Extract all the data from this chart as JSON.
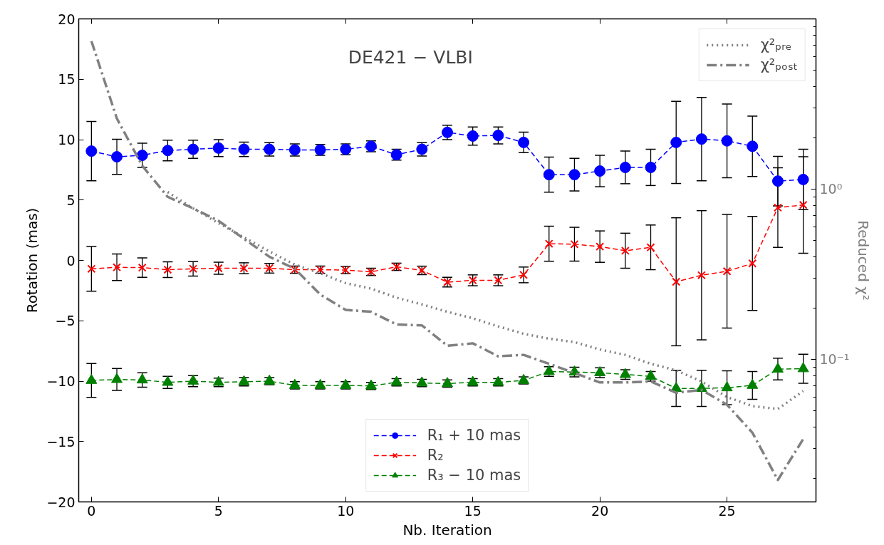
{
  "chart_data": {
    "type": "line",
    "title": "DE421 − VLBI",
    "xlabel": "Nb. Iteration",
    "ylabel": "Rotation (mas)",
    "y2label": "Reduced χ²",
    "x": [
      0,
      1,
      2,
      3,
      4,
      5,
      6,
      7,
      8,
      9,
      10,
      11,
      12,
      13,
      14,
      15,
      16,
      17,
      18,
      19,
      20,
      21,
      22,
      23,
      24,
      25,
      26,
      27,
      28
    ],
    "xlim": [
      -0.5,
      28.5
    ],
    "xticks": [
      0,
      5,
      10,
      15,
      20,
      25
    ],
    "ylim": [
      -20,
      20
    ],
    "yticks": [
      {
        "value": -20,
        "label": "−20"
      },
      {
        "value": -15,
        "label": "−15"
      },
      {
        "value": -10,
        "label": "−10"
      },
      {
        "value": -5,
        "label": "−5"
      },
      0,
      5,
      10,
      15,
      20
    ],
    "y2lim": [
      0.0145,
      10
    ],
    "log": "y2",
    "y2ticks": [
      {
        "value": 0.02,
        "label": null
      },
      {
        "value": 0.03,
        "label": null
      },
      {
        "value": 0.04,
        "label": null
      },
      {
        "value": 0.05,
        "label": null
      },
      {
        "value": 0.06,
        "label": null
      },
      {
        "value": 0.07,
        "label": null
      },
      {
        "value": 0.08,
        "label": null
      },
      {
        "value": 0.09,
        "label": null
      },
      {
        "value": 0.1,
        "label": "10⁻¹"
      },
      {
        "value": 0.2,
        "label": null
      },
      {
        "value": 0.3,
        "label": null
      },
      {
        "value": 0.4,
        "label": null
      },
      {
        "value": 0.5,
        "label": null
      },
      {
        "value": 0.6,
        "label": null
      },
      {
        "value": 0.7,
        "label": null
      },
      {
        "value": 0.8,
        "label": null
      },
      {
        "value": 0.9,
        "label": null
      },
      {
        "value": 1,
        "label": "10⁰"
      },
      {
        "value": 2,
        "label": null
      },
      {
        "value": 3,
        "label": null
      },
      {
        "value": 4,
        "label": null
      },
      {
        "value": 5,
        "label": null
      },
      {
        "value": 6,
        "label": null
      },
      {
        "value": 7,
        "label": null
      },
      {
        "value": 8,
        "label": null
      },
      {
        "value": 9,
        "label": null
      }
    ],
    "grid": false,
    "legend": [
      "bottom",
      "top right"
    ],
    "series": [
      {
        "name": "R₁ + 10 mas",
        "color": "#0000ff",
        "marker": "circle",
        "line_style": "dashed",
        "values": [
          9.05,
          8.58,
          8.7,
          9.1,
          9.2,
          9.3,
          9.2,
          9.2,
          9.15,
          9.15,
          9.2,
          9.45,
          8.75,
          9.2,
          10.6,
          10.3,
          10.35,
          9.77,
          7.1,
          7.1,
          7.4,
          7.7,
          7.7,
          9.77,
          10.05,
          9.9,
          9.45,
          6.57,
          6.7
        ],
        "errors": [
          2.45,
          1.45,
          1.0,
          0.85,
          0.75,
          0.7,
          0.6,
          0.55,
          0.5,
          0.45,
          0.45,
          0.45,
          0.45,
          0.55,
          0.6,
          0.75,
          0.7,
          0.85,
          1.45,
          1.35,
          1.3,
          1.35,
          1.5,
          3.4,
          3.45,
          3.05,
          2.5,
          2.05,
          2.5
        ]
      },
      {
        "name": "R₂",
        "color": "#ff0000",
        "marker": "cross",
        "line_style": "dashed",
        "values": [
          -0.7,
          -0.57,
          -0.6,
          -0.77,
          -0.7,
          -0.65,
          -0.65,
          -0.65,
          -0.77,
          -0.77,
          -0.8,
          -0.95,
          -0.53,
          -0.83,
          -1.8,
          -1.65,
          -1.65,
          -1.2,
          1.38,
          1.34,
          1.14,
          0.8,
          1.08,
          -1.77,
          -1.23,
          -0.9,
          -0.25,
          4.37,
          4.59
        ],
        "errors": [
          1.85,
          1.1,
          0.8,
          0.65,
          0.6,
          0.5,
          0.45,
          0.4,
          0.3,
          0.3,
          0.3,
          0.3,
          0.3,
          0.35,
          0.4,
          0.45,
          0.45,
          0.65,
          1.45,
          1.4,
          1.3,
          1.45,
          1.85,
          5.3,
          5.35,
          4.7,
          3.9,
          3.3,
          4.0
        ]
      },
      {
        "name": "R₃ − 10 mas",
        "color": "#008000",
        "marker": "triangle",
        "line_style": "dashed",
        "values": [
          -9.94,
          -9.86,
          -9.9,
          -10.1,
          -10.0,
          -10.1,
          -10.05,
          -10.0,
          -10.35,
          -10.35,
          -10.35,
          -10.4,
          -10.1,
          -10.15,
          -10.2,
          -10.1,
          -10.1,
          -9.94,
          -9.2,
          -9.25,
          -9.3,
          -9.45,
          -9.6,
          -10.6,
          -10.6,
          -10.55,
          -10.35,
          -9.0,
          -8.97
        ],
        "errors": [
          1.4,
          0.9,
          0.6,
          0.5,
          0.45,
          0.35,
          0.35,
          0.3,
          0.3,
          0.3,
          0.3,
          0.3,
          0.3,
          0.3,
          0.3,
          0.3,
          0.3,
          0.3,
          0.4,
          0.4,
          0.4,
          0.4,
          0.4,
          1.5,
          1.5,
          1.4,
          1.15,
          0.9,
          1.2
        ]
      },
      {
        "name": "χ²ₚᵣₑ",
        "color": "#808080",
        "axis": "y2",
        "marker": "none",
        "line_style": "dotted",
        "x": [
          3,
          4,
          5,
          6,
          7,
          8,
          9,
          10,
          11,
          12,
          13,
          14,
          15,
          16,
          17,
          18,
          19,
          20,
          21,
          22,
          23,
          24,
          25,
          26,
          27,
          28
        ],
        "values": [
          0.96,
          0.77,
          0.63,
          0.52,
          0.43,
          0.36,
          0.32,
          0.28,
          0.26,
          0.23,
          0.21,
          0.19,
          0.174,
          0.156,
          0.141,
          0.132,
          0.126,
          0.114,
          0.106,
          0.094,
          0.086,
          0.074,
          0.06,
          0.053,
          0.051,
          0.065
        ]
      },
      {
        "name": "χ²ₚₒₛₜ",
        "color": "#808080",
        "axis": "y2",
        "marker": "none",
        "line_style": "dashdot",
        "values": [
          7.4,
          2.6,
          1.37,
          0.9,
          0.77,
          0.65,
          0.51,
          0.4,
          0.34,
          0.24,
          0.195,
          0.19,
          0.16,
          0.158,
          0.12,
          0.124,
          0.104,
          0.106,
          0.094,
          0.083,
          0.073,
          0.073,
          0.074,
          0.0635,
          0.066,
          0.054,
          0.037,
          0.0195,
          0.034
        ]
      }
    ]
  }
}
